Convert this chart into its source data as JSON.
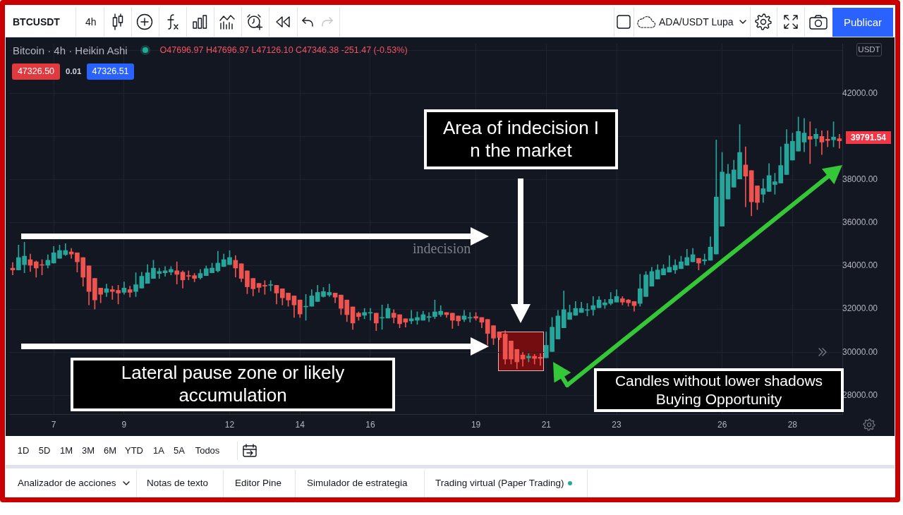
{
  "chart_data": {
    "type": "candlestick",
    "title": "Bitcoin · 4h · Heikin Ashi",
    "subtitle": "O47696.97 H47696.97 L47126.10 C47346.38 -251.47 (-0.53%)",
    "categories": [
      null,
      null,
      null,
      null,
      null,
      null,
      null,
      "7",
      null,
      null,
      null,
      null,
      null,
      null,
      null,
      null,
      null,
      null,
      null,
      "9",
      null,
      null,
      null,
      null,
      null,
      null,
      null,
      null,
      null,
      null,
      null,
      null,
      null,
      null,
      null,
      null,
      null,
      "12",
      null,
      null,
      null,
      null,
      null,
      null,
      null,
      null,
      null,
      null,
      null,
      "14",
      null,
      null,
      null,
      null,
      null,
      null,
      null,
      null,
      null,
      null,
      null,
      "16",
      null,
      null,
      null,
      null,
      null,
      null,
      null,
      null,
      null,
      null,
      null,
      null,
      null,
      null,
      null,
      null,
      null,
      "19",
      null,
      null,
      null,
      null,
      null,
      null,
      null,
      null,
      null,
      null,
      null,
      "21",
      null,
      null,
      null,
      null,
      null,
      null,
      null,
      null,
      null,
      null,
      null,
      "23",
      null,
      null,
      null,
      null,
      null,
      null,
      null,
      null,
      null,
      null,
      null,
      null,
      null,
      null,
      null,
      null,
      null,
      "26",
      null,
      null,
      null,
      null,
      null,
      null,
      null,
      null,
      null,
      null,
      null,
      "28",
      null,
      null,
      null,
      null,
      null,
      null,
      null,
      null
    ],
    "ohlc": [
      [
        33900,
        34160,
        33580,
        33810
      ],
      [
        33810,
        34970,
        33810,
        34390
      ],
      [
        34060,
        35100,
        33680,
        34450
      ],
      [
        34290,
        34550,
        33740,
        34030
      ],
      [
        34190,
        34230,
        33480,
        33900
      ],
      [
        34060,
        34290,
        33580,
        34030
      ],
      [
        34030,
        34520,
        33900,
        34260
      ],
      [
        34130,
        34900,
        34130,
        34610
      ],
      [
        34350,
        34970,
        34350,
        34710
      ],
      [
        34520,
        35030,
        34480,
        34710
      ],
      [
        34650,
        34810,
        34350,
        34550
      ],
      [
        34610,
        34610,
        33710,
        34190
      ],
      [
        34390,
        34390,
        33060,
        33480
      ],
      [
        34000,
        34000,
        32190,
        32810
      ],
      [
        33420,
        33420,
        32000,
        32420
      ],
      [
        32970,
        32970,
        32290,
        32680
      ],
      [
        32770,
        33160,
        32580,
        32940
      ],
      [
        32900,
        33060,
        32450,
        32810
      ],
      [
        32870,
        33100,
        32230,
        32740
      ],
      [
        32770,
        33260,
        32680,
        32970
      ],
      [
        32900,
        33060,
        32550,
        32770
      ],
      [
        32810,
        33680,
        32580,
        33130
      ],
      [
        32970,
        33710,
        32970,
        33520
      ],
      [
        33190,
        34060,
        33190,
        33680
      ],
      [
        33420,
        34260,
        33420,
        33900
      ],
      [
        33650,
        33900,
        33420,
        33740
      ],
      [
        33680,
        33970,
        33520,
        33770
      ],
      [
        33710,
        33970,
        33580,
        33840
      ],
      [
        33770,
        34190,
        33160,
        33610
      ],
      [
        33710,
        33770,
        32970,
        33350
      ],
      [
        33550,
        33770,
        33350,
        33520
      ],
      [
        33550,
        33650,
        33260,
        33420
      ],
      [
        33450,
        33840,
        33390,
        33650
      ],
      [
        33550,
        34000,
        33550,
        33870
      ],
      [
        33680,
        34130,
        33680,
        33900
      ],
      [
        33770,
        34680,
        33710,
        34130
      ],
      [
        33970,
        34550,
        33970,
        34290
      ],
      [
        34060,
        34710,
        34060,
        34390
      ],
      [
        34260,
        34480,
        33480,
        33900
      ],
      [
        34100,
        34100,
        33260,
        33420
      ],
      [
        33770,
        33770,
        32710,
        33030
      ],
      [
        33420,
        33420,
        32610,
        32940
      ],
      [
        33190,
        33190,
        32770,
        33000
      ],
      [
        33100,
        33320,
        32680,
        33060
      ],
      [
        33100,
        33320,
        32840,
        33130
      ],
      [
        33100,
        33100,
        32230,
        32740
      ],
      [
        32940,
        32940,
        32190,
        32520
      ],
      [
        32740,
        32740,
        32130,
        32420
      ],
      [
        32610,
        32610,
        31610,
        32190
      ],
      [
        32420,
        32420,
        31610,
        31770
      ],
      [
        32100,
        32680,
        31480,
        32130
      ],
      [
        32130,
        32900,
        32130,
        32610
      ],
      [
        32350,
        33100,
        32350,
        32770
      ],
      [
        32580,
        33000,
        32550,
        32810
      ],
      [
        32650,
        33160,
        32580,
        32770
      ],
      [
        32740,
        32740,
        32290,
        32550
      ],
      [
        32650,
        32650,
        31740,
        32030
      ],
      [
        32420,
        32420,
        31420,
        31740
      ],
      [
        32100,
        32100,
        31060,
        31350
      ],
      [
        31810,
        31870,
        31480,
        31650
      ],
      [
        31710,
        32030,
        31550,
        31840
      ],
      [
        31810,
        32030,
        31480,
        31840
      ],
      [
        31810,
        31810,
        31000,
        31350
      ],
      [
        31580,
        32190,
        31060,
        31610
      ],
      [
        31580,
        32230,
        31580,
        32030
      ],
      [
        31810,
        31970,
        31350,
        31610
      ],
      [
        31740,
        31740,
        31130,
        31320
      ],
      [
        31550,
        31550,
        31160,
        31390
      ],
      [
        31450,
        31940,
        31320,
        31550
      ],
      [
        31480,
        31870,
        31290,
        31610
      ],
      [
        31480,
        31900,
        31480,
        31740
      ],
      [
        31610,
        31840,
        31420,
        31650
      ],
      [
        31650,
        32420,
        31550,
        31870
      ],
      [
        31740,
        32160,
        31650,
        31900
      ],
      [
        31840,
        31840,
        31610,
        31740
      ],
      [
        31810,
        31810,
        31100,
        31480
      ],
      [
        31680,
        31680,
        31230,
        31450
      ],
      [
        31520,
        31940,
        31420,
        31680
      ],
      [
        31580,
        31840,
        31390,
        31610
      ],
      [
        31650,
        31840,
        31480,
        31580
      ],
      [
        31610,
        31610,
        31130,
        31390
      ],
      [
        31520,
        31520,
        30350,
        30870
      ],
      [
        31230,
        31230,
        30350,
        30650
      ],
      [
        30940,
        30940,
        30580,
        30680
      ],
      [
        30840,
        31000,
        29450,
        29680
      ],
      [
        30520,
        30520,
        29450,
        29680
      ],
      [
        30130,
        30130,
        29230,
        29550
      ],
      [
        29870,
        30000,
        29350,
        29680
      ],
      [
        29740,
        29940,
        29550,
        29810
      ],
      [
        29810,
        29900,
        29450,
        29710
      ],
      [
        29770,
        29940,
        29390,
        29710
      ],
      [
        29740,
        30940,
        29740,
        30320
      ],
      [
        30030,
        31610,
        30030,
        31160
      ],
      [
        30610,
        31940,
        30610,
        31680
      ],
      [
        31130,
        32840,
        31130,
        31970
      ],
      [
        31520,
        32190,
        31520,
        31840
      ],
      [
        31710,
        32350,
        31710,
        32030
      ],
      [
        31840,
        32320,
        31840,
        32030
      ],
      [
        31940,
        32260,
        31680,
        31970
      ],
      [
        31970,
        32580,
        31710,
        32160
      ],
      [
        32060,
        32580,
        32060,
        32420
      ],
      [
        32190,
        32450,
        32030,
        32290
      ],
      [
        32260,
        32770,
        32190,
        32450
      ],
      [
        32320,
        32900,
        32320,
        32580
      ],
      [
        32480,
        32580,
        32190,
        32320
      ],
      [
        32420,
        32450,
        32130,
        32290
      ],
      [
        32350,
        32350,
        31900,
        32160
      ],
      [
        32260,
        33610,
        32130,
        32940
      ],
      [
        32580,
        33740,
        32580,
        33580
      ],
      [
        33060,
        33940,
        33060,
        33740
      ],
      [
        33390,
        34060,
        33390,
        33810
      ],
      [
        33580,
        34060,
        33580,
        33870
      ],
      [
        33710,
        34480,
        33710,
        33940
      ],
      [
        33810,
        34290,
        33650,
        34030
      ],
      [
        33870,
        34450,
        33870,
        34190
      ],
      [
        34030,
        34770,
        34030,
        34390
      ],
      [
        34190,
        34810,
        34190,
        34520
      ],
      [
        34350,
        34350,
        33810,
        34130
      ],
      [
        34230,
        34550,
        34060,
        34290
      ],
      [
        34260,
        35350,
        34260,
        34870
      ],
      [
        34550,
        39840,
        34550,
        37190
      ],
      [
        35840,
        39260,
        35840,
        38350
      ],
      [
        37100,
        38710,
        37100,
        38260
      ],
      [
        37650,
        38900,
        37650,
        38450
      ],
      [
        38030,
        40550,
        38030,
        39260
      ],
      [
        38680,
        39520,
        36740,
        38160
      ],
      [
        38420,
        38420,
        36320,
        36970
      ],
      [
        37710,
        37710,
        36610,
        36940
      ],
      [
        37320,
        38030,
        36940,
        37580
      ],
      [
        37450,
        38740,
        37450,
        38190
      ],
      [
        37770,
        38290,
        37320,
        37900
      ],
      [
        37840,
        39520,
        37840,
        38650
      ],
      [
        38230,
        40320,
        38230,
        39650
      ],
      [
        38900,
        40160,
        38900,
        39770
      ],
      [
        39320,
        40900,
        39320,
        40230
      ],
      [
        39740,
        40840,
        39290,
        40160
      ],
      [
        40000,
        40680,
        38740,
        39870
      ],
      [
        39900,
        40360,
        39550,
        40100
      ],
      [
        40000,
        40260,
        39160,
        39740
      ],
      [
        39870,
        40260,
        39520,
        39810
      ],
      [
        39840,
        40680,
        39520,
        39970
      ],
      [
        39900,
        40100,
        39450,
        39791.54
      ]
    ],
    "colors": [
      "#ef5350",
      "#26a69a",
      "#26a69a",
      "#ef5350",
      "#ef5350",
      "#ef5350",
      "#26a69a",
      "#26a69a",
      "#26a69a",
      "#26a69a",
      "#ef5350",
      "#ef5350",
      "#ef5350",
      "#ef5350",
      "#ef5350",
      "#ef5350",
      "#26a69a",
      "#ef5350",
      "#ef5350",
      "#26a69a",
      "#ef5350",
      "#26a69a",
      "#26a69a",
      "#26a69a",
      "#26a69a",
      "#26a69a",
      "#26a69a",
      "#26a69a",
      "#ef5350",
      "#ef5350",
      "#ef5350",
      "#ef5350",
      "#26a69a",
      "#26a69a",
      "#26a69a",
      "#26a69a",
      "#26a69a",
      "#26a69a",
      "#ef5350",
      "#ef5350",
      "#ef5350",
      "#ef5350",
      "#ef5350",
      "#ef5350",
      "#26a69a",
      "#ef5350",
      "#ef5350",
      "#ef5350",
      "#ef5350",
      "#ef5350",
      "#26a69a",
      "#26a69a",
      "#26a69a",
      "#26a69a",
      "#26a69a",
      "#ef5350",
      "#ef5350",
      "#ef5350",
      "#ef5350",
      "#ef5350",
      "#26a69a",
      "#26a69a",
      "#ef5350",
      "#26a69a",
      "#26a69a",
      "#ef5350",
      "#ef5350",
      "#ef5350",
      "#26a69a",
      "#26a69a",
      "#26a69a",
      "#26a69a",
      "#26a69a",
      "#26a69a",
      "#ef5350",
      "#ef5350",
      "#ef5350",
      "#26a69a",
      "#26a69a",
      "#ef5350",
      "#ef5350",
      "#ef5350",
      "#ef5350",
      "#ef5350",
      "#ef5350",
      "#ef5350",
      "#ef5350",
      "#ef5350",
      "#26a69a",
      "#ef5350",
      "#ef5350",
      "#26a69a",
      "#26a69a",
      "#26a69a",
      "#26a69a",
      "#26a69a",
      "#26a69a",
      "#26a69a",
      "#26a69a",
      "#26a69a",
      "#26a69a",
      "#26a69a",
      "#26a69a",
      "#26a69a",
      "#ef5350",
      "#ef5350",
      "#ef5350",
      "#26a69a",
      "#26a69a",
      "#26a69a",
      "#26a69a",
      "#26a69a",
      "#26a69a",
      "#26a69a",
      "#26a69a",
      "#26a69a",
      "#26a69a",
      "#ef5350",
      "#26a69a",
      "#26a69a",
      "#26a69a",
      "#26a69a",
      "#26a69a",
      "#26a69a",
      "#26a69a",
      "#ef5350",
      "#ef5350",
      "#ef5350",
      "#26a69a",
      "#26a69a",
      "#26a69a",
      "#26a69a",
      "#26a69a",
      "#26a69a",
      "#26a69a",
      "#26a69a",
      "#ef5350",
      "#26a69a",
      "#ef5350",
      "#ef5350",
      "#26a69a",
      "#ef5350"
    ],
    "ylim": [
      27130,
      44290
    ],
    "yticks": [
      {
        "value": 28000,
        "label": "28000.00"
      },
      {
        "value": 30000,
        "label": "30000.00"
      },
      {
        "value": 32000,
        "label": "32000.00"
      },
      {
        "value": 34000,
        "label": "34000.00"
      },
      {
        "value": 36000,
        "label": "36000.00"
      },
      {
        "value": 38000,
        "label": "38000.00"
      },
      {
        "value": 40000,
        "label": null
      },
      {
        "value": 42000,
        "label": "42000.00"
      },
      {
        "value": 44000,
        "label": null
      }
    ],
    "grid": true,
    "annotations": [
      "BTCUSDT",
      "4h",
      "ADA/USDT Lupa",
      "Publicar",
      "47326.50",
      "0.01",
      "47326.51",
      "USDT",
      "39791.54",
      "Area of indecision I n the market",
      "indecision",
      "Lateral pause zone or likely accumulation",
      "Candles without lower shadows Buying Opportunity",
      "1D",
      "5D",
      "1M",
      "3M",
      "6M",
      "YTD",
      "1A",
      "5A",
      "Todos",
      "Analizador de acciones",
      "Notas de texto",
      "Editor Pine",
      "Simulador de estrategia",
      "Trading virtual (Paper Trading)"
    ]
  }
}
